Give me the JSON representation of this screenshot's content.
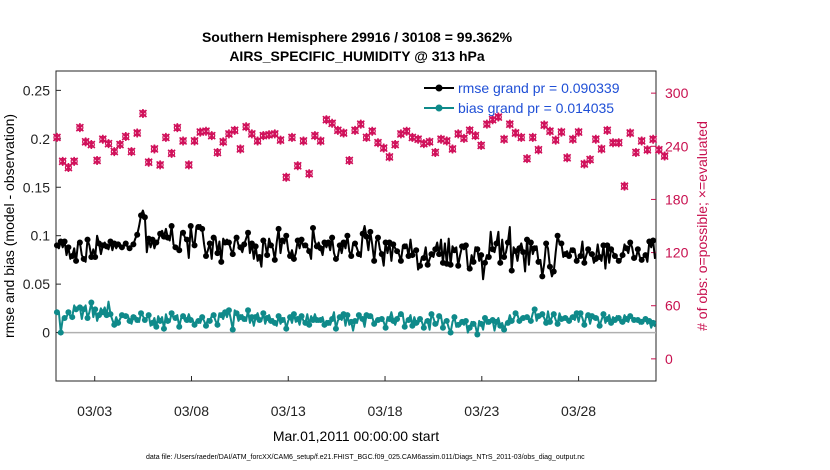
{
  "chart_data": {
    "type": "line",
    "title_line1": "Southern Hemisphere 29916 / 30108 = 99.362%",
    "title_line2": "AIRS_SPECIFIC_HUMIDITY @ 313 hPa",
    "xlabel": "Mar.01,2011 00:00:00 start",
    "ylabel_left": "rmse and bias (model - observation)",
    "ylabel_right": "# of obs: o=possible; ×=evaluated",
    "footnote": "data file: /Users/raeder/DAI/ATM_forcXX/CAM6_setup/f.e21.FHIST_BGC.f09_025.CAM6assim.011/Diags_NTrS_2011-03/obs_diag_output.nc",
    "x_range_days": [
      0,
      31
    ],
    "x_ticks": [
      {
        "day": 2,
        "label": "03/03"
      },
      {
        "day": 7,
        "label": "03/08"
      },
      {
        "day": 12,
        "label": "03/13"
      },
      {
        "day": 17,
        "label": "03/18"
      },
      {
        "day": 22,
        "label": "03/23"
      },
      {
        "day": 27,
        "label": "03/28"
      }
    ],
    "y_left": {
      "range": [
        -0.05,
        0.27
      ],
      "ticks": [
        0,
        0.05,
        0.1,
        0.15,
        0.2,
        0.25
      ],
      "tick_labels": [
        "0",
        "0.05",
        "0.1",
        "0.15",
        "0.2",
        "0.25"
      ]
    },
    "y_right": {
      "range": [
        -25,
        325
      ],
      "ticks": [
        0,
        60,
        120,
        180,
        240,
        300
      ],
      "tick_labels": [
        "0",
        "60",
        "120",
        "180",
        "240",
        "300"
      ]
    },
    "legend": {
      "placement": "top-right",
      "entries": [
        "rmse grand pr = 0.090339",
        "bias grand pr = 0.014035"
      ]
    },
    "colors": {
      "rmse": "#000000",
      "bias": "#0f8a8a",
      "obs": "#d0105a",
      "zero_line": "#b0b0b0"
    },
    "rmse": [
      0.09,
      0.087,
      0.094,
      0.088,
      0.094,
      0.08,
      0.088,
      0.076,
      0.079,
      0.087,
      0.074,
      0.092,
      0.093,
      0.08,
      0.076,
      0.073,
      0.096,
      0.09,
      0.078,
      0.086,
      0.078,
      0.1,
      0.092,
      0.081,
      0.09,
      0.093,
      0.089,
      0.086,
      0.094,
      0.085,
      0.092,
      0.087,
      0.091,
      0.091,
      0.088,
      0.089,
      0.092,
      0.088,
      0.087,
      0.09,
      0.091,
      0.097,
      0.101,
      0.11,
      0.121,
      0.126,
      0.119,
      0.083,
      0.097,
      0.088,
      0.096,
      0.087,
      0.093,
      0.095,
      0.102,
      0.105,
      0.099,
      0.107,
      0.098,
      0.095,
      0.11,
      0.091,
      0.088,
      0.087,
      0.085,
      0.104,
      0.103,
      0.098,
      0.096,
      0.077,
      0.11,
      0.094,
      0.09,
      0.109,
      0.109,
      0.111,
      0.107,
      0.091,
      0.079,
      0.085,
      0.092,
      0.076,
      0.098,
      0.098,
      0.082,
      0.094,
      0.073,
      0.097,
      0.093,
      0.096,
      0.093,
      0.086,
      0.081,
      0.094,
      0.098,
      0.09,
      0.088,
      0.083,
      0.091,
      0.097,
      0.103,
      0.082,
      0.092,
      0.076,
      0.089,
      0.074,
      0.078,
      0.068,
      0.095,
      0.092,
      0.08,
      0.097,
      0.09,
      0.087,
      0.075,
      0.093,
      0.107,
      0.082,
      0.095,
      0.092,
      0.1,
      0.085,
      0.079,
      0.085,
      0.076,
      0.082,
      0.095,
      0.087,
      0.096,
      0.088,
      0.09,
      0.088,
      0.084,
      0.076,
      0.108,
      0.094,
      0.089,
      0.093,
      0.087,
      0.08,
      0.093,
      0.088,
      0.093,
      0.085,
      0.098,
      0.082,
      0.076,
      0.078,
      0.09,
      0.082,
      0.093,
      0.087,
      0.1,
      0.084,
      0.079,
      0.092,
      0.092,
      0.087,
      0.081,
      0.078,
      0.102,
      0.11,
      0.099,
      0.085,
      0.104,
      0.091,
      0.074,
      0.094,
      0.098,
      0.086,
      0.081,
      0.069,
      0.093,
      0.082,
      0.093,
      0.074,
      0.091,
      0.087,
      0.084,
      0.081,
      0.074,
      0.088,
      0.089,
      0.091,
      0.079,
      0.096,
      0.08,
      0.085,
      0.085,
      0.065,
      0.069,
      0.078,
      0.077,
      0.088,
      0.07,
      0.076,
      0.081,
      0.078,
      0.086,
      0.093,
      0.081,
      0.096,
      0.072,
      0.092,
      0.071,
      0.097,
      0.07,
      0.089,
      0.085,
      0.088,
      0.069,
      0.08,
      0.089,
      0.086,
      0.09,
      0.068,
      0.066,
      0.08,
      0.073,
      0.088,
      0.086,
      0.074,
      0.08,
      0.055,
      0.072,
      0.08,
      0.078,
      0.104,
      0.086,
      0.083,
      0.092,
      0.104,
      0.072,
      0.096,
      0.078,
      0.083,
      0.093,
      0.109,
      0.064,
      0.088,
      0.084,
      0.074,
      0.087,
      0.092,
      0.083,
      0.063,
      0.096,
      0.07,
      0.093,
      0.081,
      0.087,
      0.089,
      0.073,
      0.075,
      0.058,
      0.071,
      0.092,
      0.087,
      0.068,
      0.058,
      0.063,
      0.083,
      0.1,
      0.092,
      0.092,
      0.078,
      0.081,
      0.084,
      0.079,
      0.087,
      0.085,
      0.084,
      0.074,
      0.077,
      0.079,
      0.094,
      0.072,
      0.08,
      0.086,
      0.08,
      0.081,
      0.072,
      0.076,
      0.091,
      0.078,
      0.074,
      0.09,
      0.066,
      0.09,
      0.072,
      0.086,
      0.083,
      0.079,
      0.077,
      0.074,
      0.075,
      0.08,
      0.091,
      0.087,
      0.082,
      0.093,
      0.088,
      0.077,
      0.076,
      0.086,
      0.078,
      0.075,
      0.078,
      0.08,
      0.073,
      0.094,
      0.088,
      0.095,
      0.076
    ],
    "bias": [
      0.021,
      0.021,
      0.0,
      0.014,
      0.015,
      0.016,
      0.021,
      0.017,
      0.016,
      0.028,
      0.024,
      0.026,
      0.026,
      0.014,
      0.024,
      0.028,
      0.015,
      0.021,
      0.031,
      0.016,
      0.024,
      0.012,
      0.018,
      0.025,
      0.021,
      0.026,
      0.018,
      0.032,
      0.019,
      0.013,
      0.008,
      0.016,
      0.01,
      0.014,
      0.018,
      0.016,
      0.017,
      0.018,
      0.012,
      0.009,
      0.016,
      0.017,
      0.013,
      0.011,
      0.02,
      0.017,
      0.013,
      0.015,
      0.018,
      0.007,
      0.01,
      0.015,
      0.006,
      0.017,
      0.012,
      0.016,
      0.004,
      0.019,
      0.012,
      0.011,
      0.02,
      0.015,
      0.015,
      0.018,
      0.006,
      0.015,
      0.017,
      0.012,
      0.013,
      0.019,
      0.013,
      0.013,
      0.008,
      0.012,
      0.012,
      0.01,
      0.016,
      0.012,
      0.007,
      0.014,
      0.012,
      0.017,
      0.018,
      0.012,
      0.008,
      0.02,
      0.018,
      0.014,
      0.021,
      0.016,
      0.023,
      0.014,
      0.003,
      0.023,
      0.02,
      0.012,
      0.016,
      0.018,
      0.014,
      0.012,
      0.023,
      0.01,
      0.016,
      0.007,
      0.016,
      0.02,
      0.013,
      0.012,
      0.02,
      0.009,
      0.015,
      0.018,
      0.012,
      0.014,
      0.01,
      0.007,
      0.017,
      0.009,
      0.013,
      0.015,
      0.004,
      0.012,
      0.016,
      0.01,
      0.019,
      0.011,
      0.014,
      0.008,
      0.017,
      0.012,
      0.01,
      0.019,
      0.008,
      0.017,
      0.013,
      0.019,
      0.013,
      0.011,
      0.013,
      0.016,
      0.008,
      0.012,
      0.01,
      0.008,
      0.014,
      0.021,
      0.004,
      0.012,
      0.016,
      0.013,
      0.019,
      0.007,
      0.018,
      0.008,
      0.011,
      0.002,
      0.012,
      0.01,
      0.018,
      0.013,
      0.014,
      0.006,
      0.018,
      0.015,
      0.017,
      0.016,
      0.009,
      0.013,
      0.013,
      0.015,
      0.014,
      0.011,
      0.005,
      0.016,
      0.014,
      0.021,
      0.012,
      0.008,
      0.014,
      0.018,
      0.019,
      0.018,
      0.006,
      0.012,
      0.013,
      0.018,
      0.007,
      0.016,
      0.01,
      0.009,
      0.014,
      0.011,
      0.005,
      0.013,
      0.012,
      0.003,
      0.019,
      0.015,
      0.009,
      0.008,
      0.017,
      0.017,
      0.005,
      0.013,
      0.012,
      0.005,
      0.0,
      0.011,
      0.016,
      0.006,
      0.008,
      0.007,
      0.011,
      0.008,
      0.012,
      0.0,
      0.005,
      0.011,
      0.009,
      0.007,
      -0.002,
      0.012,
      0.009,
      0.003,
      0.015,
      0.009,
      0.011,
      0.013,
      0.013,
      0.002,
      0.011,
      0.015,
      0.007,
      0.01,
      0.003,
      0.01,
      0.01,
      0.018,
      0.012,
      0.014,
      0.02,
      0.018,
      0.012,
      0.016,
      0.015,
      0.016,
      0.016,
      0.013,
      0.012,
      0.02,
      0.024,
      0.012,
      0.017,
      0.016,
      0.019,
      0.015,
      0.01,
      0.022,
      0.011,
      0.016,
      0.019,
      0.013,
      0.009,
      0.02,
      0.014,
      0.013,
      0.015,
      0.016,
      0.012,
      0.017,
      0.016,
      0.013,
      0.02,
      0.011,
      0.02,
      0.015,
      0.008,
      0.017,
      0.018,
      0.009,
      0.017,
      0.014,
      0.015,
      0.016,
      0.007,
      0.013,
      0.019,
      0.01,
      0.014,
      0.018,
      0.01,
      0.016,
      0.013,
      0.017,
      0.015,
      0.01,
      0.011,
      0.018,
      0.014,
      0.011,
      0.017,
      0.016,
      0.013,
      0.012,
      0.013,
      0.009,
      0.011,
      0.014,
      0.014,
      0.009,
      0.012,
      0.005,
      0.01,
      0.006
    ],
    "obs_possible": [
      250,
      240,
      229,
      223,
      219,
      212,
      216,
      210,
      232,
      223,
      211,
      202,
      261,
      247,
      223,
      245,
      245,
      251,
      242,
      207,
      229,
      224,
      246,
      238,
      248,
      238,
      259,
      243,
      236,
      244,
      234,
      241,
      246,
      242,
      247,
      250,
      251,
      246,
      245,
      234,
      258,
      252,
      255,
      244,
      245,
      277,
      268,
      261,
      222,
      243,
      230,
      237,
      251,
      251,
      219,
      222,
      240,
      250,
      224,
      230,
      232,
      262,
      269,
      261,
      243,
      240,
      246,
      261,
      246,
      219,
      264,
      272,
      246,
      259,
      268,
      256,
      260,
      270,
      257,
      252,
      259,
      252,
      243,
      225,
      233,
      241,
      238,
      245,
      262,
      256,
      254,
      247,
      249,
      258,
      262,
      260,
      237,
      246,
      241,
      262,
      265,
      251,
      254,
      249,
      244,
      246,
      244,
      253,
      252,
      239,
      249,
      253,
      255,
      262,
      254,
      247,
      232,
      247,
      246,
      213,
      205,
      213,
      233,
      250,
      208,
      243,
      218,
      238,
      244,
      246,
      207,
      229,
      209,
      218,
      263,
      252,
      239,
      242,
      246,
      263,
      253,
      270,
      239,
      245,
      266,
      249,
      250,
      258,
      256,
      249,
      255,
      235,
      229,
      224,
      208,
      248,
      258,
      238,
      228,
      265,
      245,
      247,
      250,
      253,
      261,
      257,
      243,
      247,
      244,
      264,
      259,
      238,
      239,
      247,
      228,
      241,
      240,
      242,
      229,
      232,
      254,
      244,
      254,
      257,
      264,
      248,
      250,
      264,
      243,
      248,
      237,
      253,
      243,
      243,
      251,
      245,
      233,
      245,
      233,
      255,
      248,
      248,
      240,
      250,
      246,
      249,
      239,
      237,
      264,
      255,
      254,
      243,
      243,
      249,
      255,
      270,
      258,
      265,
      260,
      252,
      263,
      251,
      241,
      263,
      263,
      265,
      260,
      254,
      270,
      250,
      267,
      273,
      257,
      261,
      248,
      233,
      261,
      265,
      259,
      264,
      255,
      229,
      232,
      250,
      243,
      242,
      226,
      270,
      230,
      250,
      241,
      260,
      236,
      254,
      263,
      264,
      265,
      262,
      257,
      264,
      261,
      247,
      268,
      254,
      256,
      230,
      230,
      227,
      215,
      240,
      248,
      240,
      245,
      256,
      230,
      231,
      220,
      222,
      240,
      225,
      263,
      252,
      248,
      248,
      240,
      237,
      252,
      262,
      258,
      243,
      248,
      244,
      252,
      260,
      244,
      219,
      214,
      195,
      244,
      261,
      255,
      257,
      226,
      233,
      245,
      223,
      246,
      237,
      240,
      236,
      239,
      243,
      248,
      250,
      252,
      236,
      240,
      233,
      229,
      229,
      233
    ],
    "obs_evaluated": [
      250,
      240,
      229,
      223,
      219,
      212,
      216,
      210,
      232,
      223,
      211,
      202,
      261,
      247,
      223,
      245,
      245,
      251,
      242,
      207,
      229,
      224,
      246,
      238,
      248,
      238,
      259,
      243,
      236,
      244,
      234,
      241,
      246,
      242,
      247,
      250,
      251,
      246,
      245,
      234,
      258,
      252,
      255,
      244,
      245,
      277,
      268,
      261,
      222,
      243,
      230,
      237,
      251,
      251,
      219,
      222,
      240,
      250,
      224,
      230,
      232,
      262,
      269,
      261,
      243,
      240,
      246,
      261,
      246,
      219,
      264,
      272,
      246,
      259,
      268,
      256,
      260,
      270,
      257,
      252,
      259,
      252,
      243,
      225,
      233,
      241,
      238,
      245,
      262,
      256,
      254,
      247,
      249,
      258,
      262,
      260,
      237,
      246,
      241,
      262,
      265,
      251,
      254,
      249,
      244,
      246,
      244,
      253,
      252,
      239,
      249,
      253,
      255,
      262,
      254,
      247,
      232,
      247,
      246,
      213,
      205,
      213,
      233,
      250,
      208,
      243,
      218,
      238,
      244,
      246,
      207,
      229,
      209,
      218,
      263,
      252,
      239,
      242,
      246,
      263,
      253,
      270,
      239,
      245,
      266,
      249,
      250,
      258,
      256,
      249,
      255,
      235,
      229,
      224,
      208,
      248,
      258,
      238,
      228,
      265,
      245,
      247,
      250,
      253,
      261,
      257,
      243,
      247,
      244,
      264,
      259,
      238,
      239,
      247,
      228,
      241,
      240,
      242,
      229,
      232,
      254,
      244,
      254,
      257,
      264,
      248,
      250,
      264,
      243,
      248,
      237,
      253,
      243,
      243,
      251,
      245,
      233,
      245,
      233,
      255,
      248,
      248,
      240,
      250,
      246,
      249,
      239,
      237,
      264,
      255,
      254,
      243,
      243,
      249,
      255,
      270,
      258,
      265,
      260,
      252,
      263,
      251,
      241,
      263,
      263,
      265,
      260,
      254,
      270,
      250,
      267,
      273,
      257,
      261,
      248,
      233,
      261,
      265,
      259,
      264,
      255,
      229,
      232,
      250,
      243,
      242,
      226,
      270,
      230,
      250,
      241,
      260,
      236,
      254,
      263,
      264,
      265,
      262,
      257,
      264,
      261,
      247,
      268,
      254,
      256,
      230,
      230,
      227,
      215,
      240,
      248,
      240,
      245,
      256,
      230,
      231,
      220,
      222,
      240,
      225,
      263,
      252,
      248,
      248,
      240,
      237,
      252,
      262,
      258,
      243,
      248,
      244,
      252,
      260,
      244,
      219,
      214,
      195,
      244,
      261,
      255,
      257,
      226,
      233,
      245,
      223,
      246,
      237,
      240,
      236,
      239,
      243,
      248,
      250,
      252,
      236,
      240,
      233,
      229,
      229,
      233
    ]
  }
}
